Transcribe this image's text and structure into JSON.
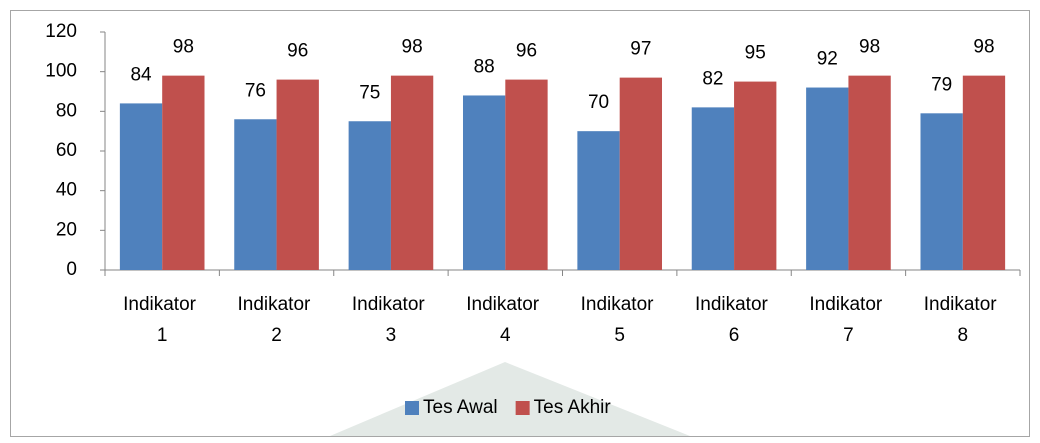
{
  "chart_data": {
    "type": "bar",
    "categories": [
      "Indikator 1",
      "Indikator 2",
      "Indikator 3",
      "Indikator 4",
      "Indikator 5",
      "Indikator 6",
      "Indikator 7",
      "Indikator 8"
    ],
    "series": [
      {
        "name": "Tes Awal",
        "color": "#4f81bd",
        "values": [
          84,
          76,
          75,
          88,
          70,
          82,
          92,
          79
        ]
      },
      {
        "name": "Tes Akhir",
        "color": "#c0504d",
        "values": [
          98,
          96,
          98,
          96,
          97,
          95,
          98,
          98
        ]
      }
    ],
    "ylim": [
      0,
      120
    ],
    "yticks": [
      0,
      20,
      40,
      60,
      80,
      100,
      120
    ],
    "grid": false,
    "legend": "bottom"
  }
}
